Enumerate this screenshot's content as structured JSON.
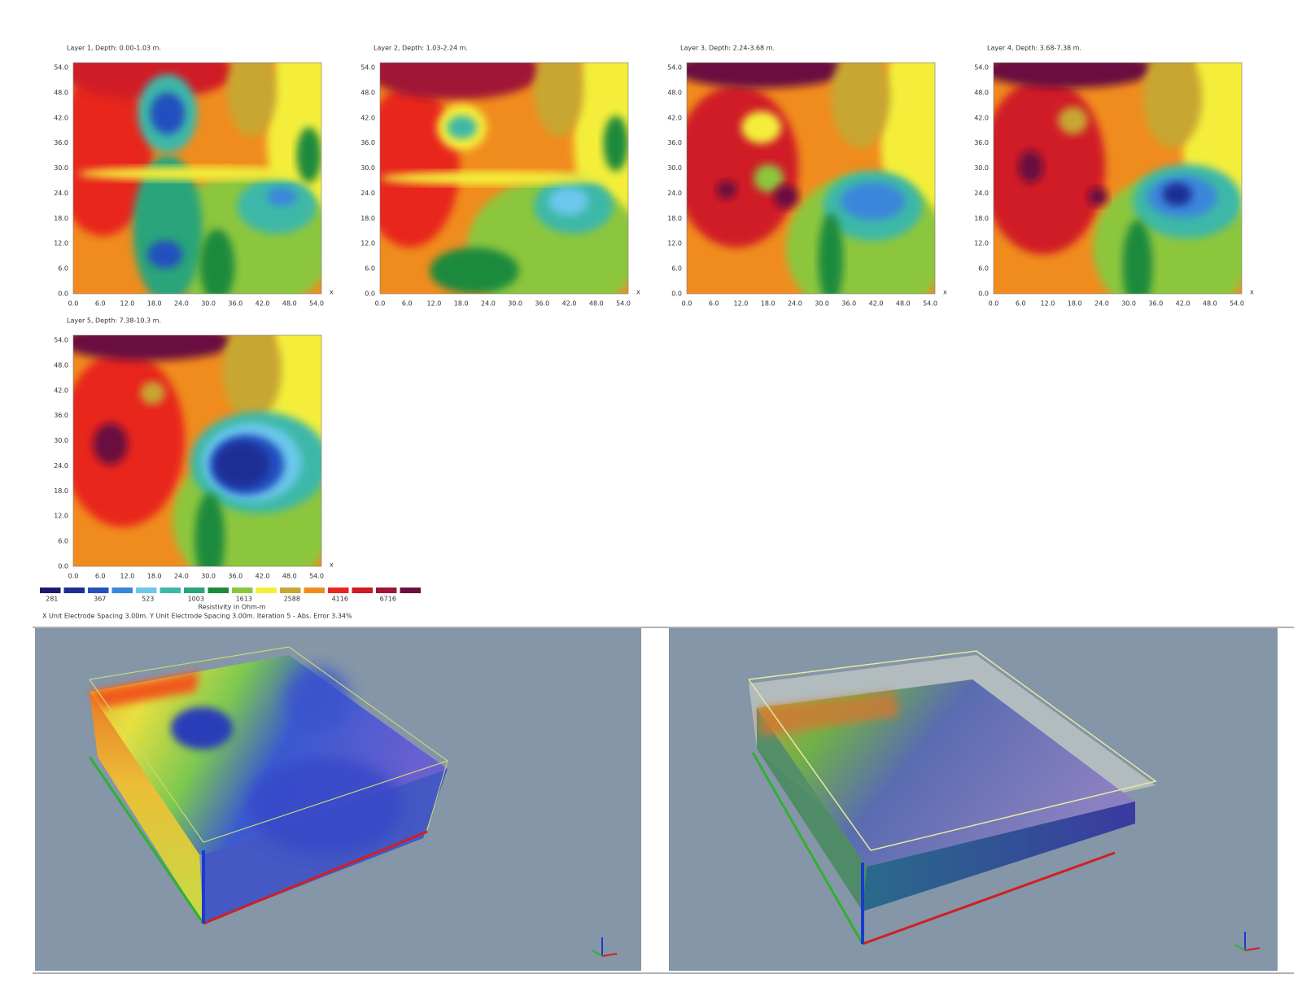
{
  "maps": [
    {
      "title": "Layer 1, Depth: 0.00-1.03 m."
    },
    {
      "title": "Layer 2, Depth: 1.03-2.24 m."
    },
    {
      "title": "Layer 3, Depth: 2.24-3.68 m."
    },
    {
      "title": "Layer 4, Depth: 3.68-7.38 m."
    },
    {
      "title": "Layer 5, Depth: 7.38-10.3 m."
    }
  ],
  "axis_ticks": [
    "0.0",
    "6.0",
    "12.0",
    "18.0",
    "24.0",
    "30.0",
    "36.0",
    "42.0",
    "48.0",
    "54.0"
  ],
  "x_axis_name": "x",
  "legend": {
    "values": [
      "281",
      "367",
      "523",
      "1003",
      "1613",
      "2588",
      "4116",
      "6716"
    ],
    "caption": "Resistivity in Ohm-m"
  },
  "footer": "X Unit Electrode Spacing 3.00m.   Y Unit Electrode Spacing 3.00m.   Iteration 5 - Abs. Error 3.34%"
}
